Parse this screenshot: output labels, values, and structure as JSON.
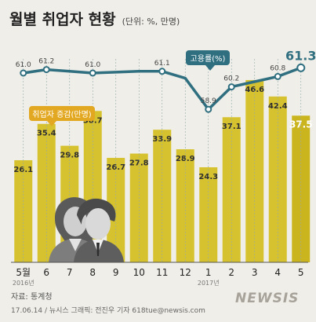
{
  "title": "월별 취업자 현황",
  "subtitle": "(단위: %, 만명)",
  "legend": {
    "employment_rate": "고용률(%)",
    "employed_increase": "취업자 증감(만명)"
  },
  "year_labels": [
    "2016년",
    "2017년"
  ],
  "footer": {
    "source": "자료: 통계청",
    "credit": "17.06.14 / 뉴시스 그래픽: 전진우 기자 618tue@newsis.com",
    "logo": "NEWSIS"
  },
  "colors": {
    "bar": "#d6c22f",
    "bar_last": "#cbb51f",
    "line": "#2f6f80",
    "legend_orange": "#e3a821",
    "background": "#f0eee8",
    "gridline": "#8fa9b0"
  },
  "chart_data": [
    {
      "type": "line",
      "name": "고용률(%)",
      "categories": [
        "5월",
        "6",
        "7",
        "8",
        "9",
        "10",
        "11",
        "12",
        "1",
        "2",
        "3",
        "4",
        "5"
      ],
      "values": [
        61.0,
        61.2,
        null,
        61.0,
        null,
        null,
        61.1,
        null,
        58.9,
        60.2,
        null,
        60.8,
        61.3
      ],
      "data_labels": [
        "61.0",
        "61.2",
        "",
        "61.0",
        "",
        "",
        "61.1",
        "",
        "58.9",
        "60.2",
        "",
        "60.8",
        "61.3"
      ],
      "note": "shown as a line without markers at unlabeled months"
    },
    {
      "type": "bar",
      "name": "취업자 증감(만명)",
      "categories": [
        "5월",
        "6",
        "7",
        "8",
        "9",
        "10",
        "11",
        "12",
        "1",
        "2",
        "3",
        "4",
        "5"
      ],
      "values": [
        26.1,
        35.4,
        29.8,
        38.7,
        26.7,
        27.8,
        33.9,
        28.9,
        24.3,
        37.1,
        46.6,
        42.4,
        37.5
      ],
      "ylim": [
        0,
        50
      ]
    }
  ]
}
